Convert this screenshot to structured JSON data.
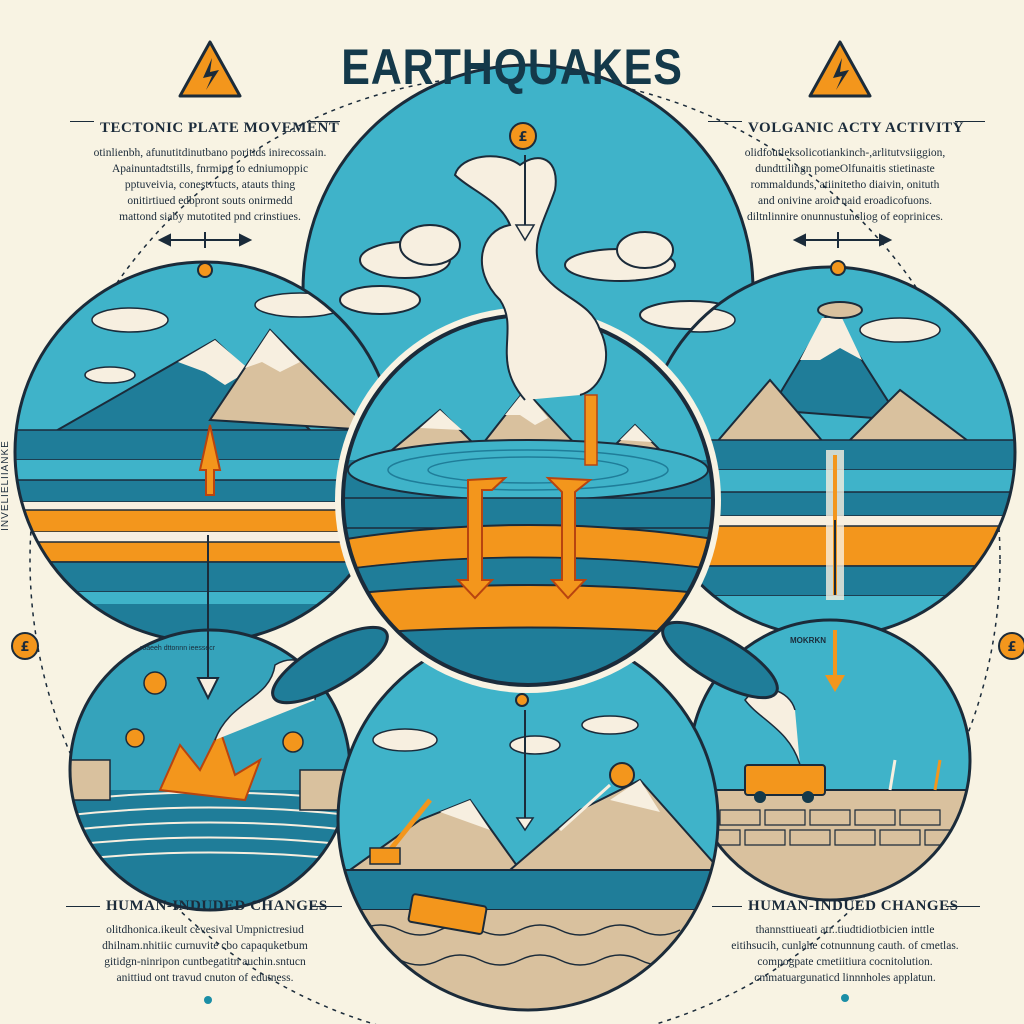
{
  "title": "EARTHQUAKES",
  "side_label": "INVELIELIIANKE",
  "top_left": {
    "heading": "TECTONIC PLATE MOVEMENT",
    "lines": [
      "otinlienbh, afunutitdinutbano poritids inirecossain.",
      "Apainuntadtstills, fnrming to edniumoppic",
      "pptuveivia, conestvtucts, atauts thing",
      "onitirtiued edbpront souts onirmedd",
      "mattond siaby mutotited pnd crinstiues."
    ]
  },
  "top_right": {
    "heading": "VOLGANIC ACTY ACTIVITY",
    "lines": [
      "olidfoutleksolicotiankinch-,arlitutvsiiggion,",
      "dundttilingn pomeOlfunaitis stietinaste",
      "rommaldunds, atiinitetho diaivin, onituth",
      "and onivine aroid naid eroadicofuons.",
      "diltnlinnire onunnustuncliog of eoprinices."
    ]
  },
  "bottom_left": {
    "heading": "HUMAN-INDUDED CHANGES",
    "lines": [
      "olitdhonica.ikeult cevesival Umpnictresiud",
      "dhilnam.nhitiic curnuvite cbo capaquketbum",
      "gitidgn-ninripon cuntbegatitn auchin.sntucn",
      "anittiud ont travud cnuton of edutness."
    ]
  },
  "bottom_right": {
    "heading": "HUMAN-INDUED CHANGES",
    "lines": [
      "thannsttiueati atr..tiudtidiotbicien inttle",
      "eitihsucih, cunlahe cotnunnung cauth. of cmetlas.",
      "compogpate cmetiitiura cocnitolution.",
      "cmmatuargunaticd linnnholes applatun."
    ]
  },
  "scene_labels": {
    "bottom_left_circle": "roaeeh dttonnn ieessecr",
    "bottom_right_circle": "MOKRKN"
  },
  "coin_symbol": "£",
  "colors": {
    "sky": "#3fb3c9",
    "teal": "#1f7d99",
    "orange": "#f3961c",
    "cream": "#f8f3e3",
    "navy": "#14394a",
    "snow": "#f7efe0",
    "rock": "#d9c19e"
  }
}
